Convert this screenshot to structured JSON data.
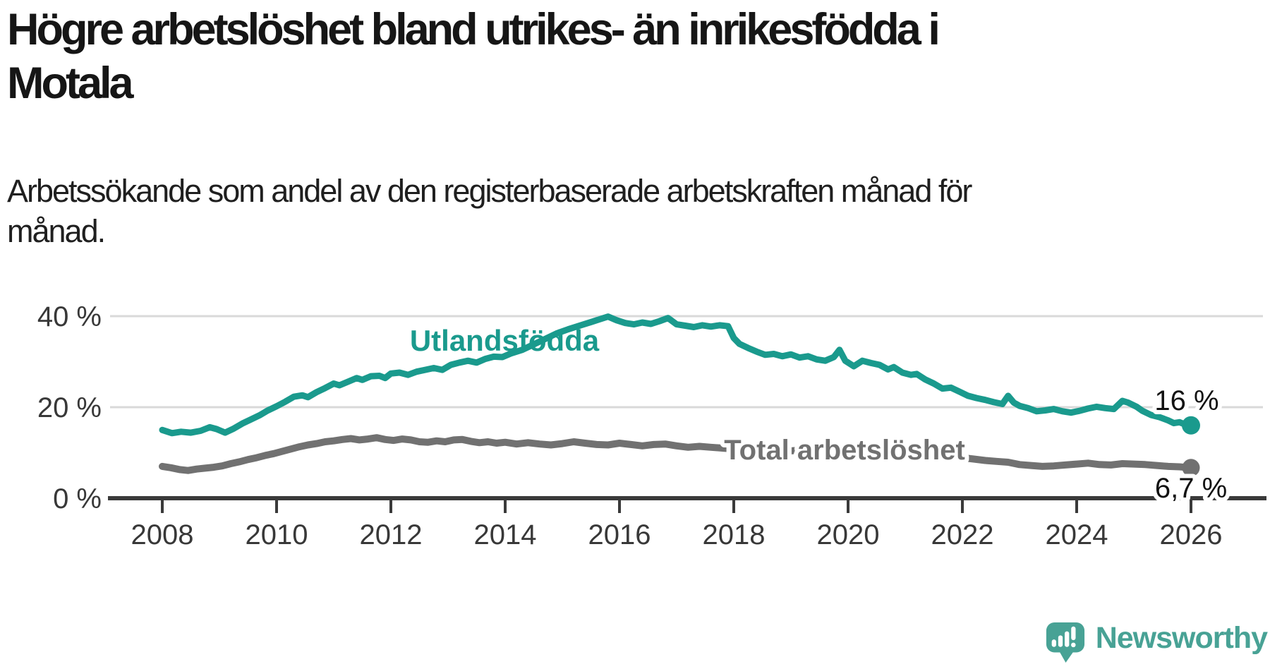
{
  "title_lines": [
    "Högre arbetslöshet bland utrikes- än inrikesfödda i",
    "Motala"
  ],
  "subtitle_lines": [
    "Arbetssökande som andel av den registerbaserade arbetskraften månad för",
    "månad."
  ],
  "branding": {
    "name": "Newsworthy",
    "logo_icon": "newsworthy-speech-bubble-bar-chart-icon"
  },
  "colors": {
    "series_foreign_born": "#1a9a8d",
    "series_total": "#717171",
    "axis": "#3a3a3a",
    "grid": "#d9d9d9",
    "label_text": "#111111",
    "tick_text": "#383838",
    "brand": "#48a295"
  },
  "chart_data": {
    "type": "line",
    "title": "Högre arbetslöshet bland utrikes- än inrikesfödda i Motala",
    "subtitle": "Arbetssökande som andel av den registerbaserade arbetskraften månad för månad.",
    "xlabel": "",
    "ylabel": "%",
    "grid": "horizontal",
    "legend_position": "inline-labels",
    "x_axis": {
      "range_years": [
        2007.1,
        2027.3
      ],
      "ticks": [
        {
          "value": 2008,
          "label": "2008"
        },
        {
          "value": 2010,
          "label": "2010"
        },
        {
          "value": 2012,
          "label": "2012"
        },
        {
          "value": 2014,
          "label": "2014"
        },
        {
          "value": 2016,
          "label": "2016"
        },
        {
          "value": 2018,
          "label": "2018"
        },
        {
          "value": 2020,
          "label": "2020"
        },
        {
          "value": 2022,
          "label": "2022"
        },
        {
          "value": 2024,
          "label": "2024"
        },
        {
          "value": 2026,
          "label": "2026"
        }
      ]
    },
    "y_axis": {
      "unit": "%",
      "range": [
        0,
        45
      ],
      "ticks": [
        {
          "value": 0,
          "label": "0 %"
        },
        {
          "value": 20,
          "label": "20 %"
        },
        {
          "value": 40,
          "label": "40 %"
        }
      ]
    },
    "series": [
      {
        "name": "Utlandsfödda",
        "color": "#1a9a8d",
        "end_value": 16,
        "end_label": "16 %",
        "points": [
          [
            2008.0,
            15.0
          ],
          [
            2008.17,
            14.3
          ],
          [
            2008.33,
            14.6
          ],
          [
            2008.5,
            14.4
          ],
          [
            2008.67,
            14.8
          ],
          [
            2008.83,
            15.6
          ],
          [
            2008.95,
            15.2
          ],
          [
            2009.1,
            14.4
          ],
          [
            2009.25,
            15.3
          ],
          [
            2009.4,
            16.4
          ],
          [
            2009.55,
            17.3
          ],
          [
            2009.7,
            18.2
          ],
          [
            2009.85,
            19.3
          ],
          [
            2010.0,
            20.2
          ],
          [
            2010.15,
            21.2
          ],
          [
            2010.3,
            22.3
          ],
          [
            2010.45,
            22.6
          ],
          [
            2010.55,
            22.2
          ],
          [
            2010.7,
            23.3
          ],
          [
            2010.85,
            24.2
          ],
          [
            2011.0,
            25.2
          ],
          [
            2011.1,
            24.8
          ],
          [
            2011.25,
            25.6
          ],
          [
            2011.4,
            26.4
          ],
          [
            2011.5,
            26.0
          ],
          [
            2011.65,
            26.8
          ],
          [
            2011.8,
            26.9
          ],
          [
            2011.9,
            26.4
          ],
          [
            2012.0,
            27.4
          ],
          [
            2012.15,
            27.6
          ],
          [
            2012.3,
            27.1
          ],
          [
            2012.45,
            27.8
          ],
          [
            2012.6,
            28.2
          ],
          [
            2012.75,
            28.6
          ],
          [
            2012.9,
            28.2
          ],
          [
            2013.05,
            29.3
          ],
          [
            2013.2,
            29.8
          ],
          [
            2013.35,
            30.2
          ],
          [
            2013.5,
            29.8
          ],
          [
            2013.65,
            30.6
          ],
          [
            2013.8,
            31.1
          ],
          [
            2013.95,
            31.0
          ],
          [
            2014.1,
            31.8
          ],
          [
            2014.3,
            32.6
          ],
          [
            2014.5,
            33.8
          ],
          [
            2014.7,
            35.0
          ],
          [
            2014.9,
            36.2
          ],
          [
            2015.1,
            37.1
          ],
          [
            2015.3,
            37.9
          ],
          [
            2015.5,
            38.7
          ],
          [
            2015.65,
            39.3
          ],
          [
            2015.8,
            39.9
          ],
          [
            2015.95,
            39.1
          ],
          [
            2016.1,
            38.5
          ],
          [
            2016.25,
            38.2
          ],
          [
            2016.4,
            38.6
          ],
          [
            2016.55,
            38.3
          ],
          [
            2016.7,
            38.9
          ],
          [
            2016.85,
            39.6
          ],
          [
            2017.0,
            38.2
          ],
          [
            2017.15,
            37.9
          ],
          [
            2017.3,
            37.6
          ],
          [
            2017.45,
            38.0
          ],
          [
            2017.6,
            37.7
          ],
          [
            2017.75,
            38.0
          ],
          [
            2017.9,
            37.8
          ],
          [
            2018.0,
            35.2
          ],
          [
            2018.1,
            33.9
          ],
          [
            2018.25,
            33.0
          ],
          [
            2018.4,
            32.2
          ],
          [
            2018.55,
            31.5
          ],
          [
            2018.7,
            31.7
          ],
          [
            2018.85,
            31.2
          ],
          [
            2019.0,
            31.6
          ],
          [
            2019.15,
            30.9
          ],
          [
            2019.3,
            31.2
          ],
          [
            2019.45,
            30.5
          ],
          [
            2019.6,
            30.2
          ],
          [
            2019.75,
            31.0
          ],
          [
            2019.85,
            32.6
          ],
          [
            2019.95,
            30.2
          ],
          [
            2020.1,
            29.0
          ],
          [
            2020.25,
            30.2
          ],
          [
            2020.4,
            29.7
          ],
          [
            2020.55,
            29.3
          ],
          [
            2020.7,
            28.3
          ],
          [
            2020.8,
            28.8
          ],
          [
            2020.95,
            27.6
          ],
          [
            2021.1,
            27.1
          ],
          [
            2021.2,
            27.3
          ],
          [
            2021.35,
            26.1
          ],
          [
            2021.5,
            25.2
          ],
          [
            2021.65,
            24.1
          ],
          [
            2021.8,
            24.3
          ],
          [
            2021.95,
            23.4
          ],
          [
            2022.1,
            22.5
          ],
          [
            2022.25,
            22.0
          ],
          [
            2022.4,
            21.6
          ],
          [
            2022.55,
            21.1
          ],
          [
            2022.7,
            20.7
          ],
          [
            2022.8,
            22.5
          ],
          [
            2022.9,
            21.0
          ],
          [
            2023.0,
            20.3
          ],
          [
            2023.15,
            19.8
          ],
          [
            2023.3,
            19.1
          ],
          [
            2023.45,
            19.3
          ],
          [
            2023.6,
            19.6
          ],
          [
            2023.75,
            19.1
          ],
          [
            2023.9,
            18.8
          ],
          [
            2024.05,
            19.2
          ],
          [
            2024.2,
            19.7
          ],
          [
            2024.35,
            20.1
          ],
          [
            2024.5,
            19.8
          ],
          [
            2024.65,
            19.6
          ],
          [
            2024.8,
            21.4
          ],
          [
            2024.9,
            21.0
          ],
          [
            2025.05,
            20.1
          ],
          [
            2025.15,
            19.2
          ],
          [
            2025.3,
            18.3
          ],
          [
            2025.45,
            17.8
          ],
          [
            2025.6,
            17.1
          ],
          [
            2025.7,
            16.5
          ],
          [
            2025.8,
            16.7
          ],
          [
            2025.92,
            16.1
          ],
          [
            2026.0,
            16.0
          ]
        ]
      },
      {
        "name": "Total arbetslöshet",
        "color": "#717171",
        "end_value": 6.7,
        "end_label": "6,7 %",
        "points": [
          [
            2008.0,
            7.0
          ],
          [
            2008.15,
            6.7
          ],
          [
            2008.3,
            6.3
          ],
          [
            2008.45,
            6.1
          ],
          [
            2008.6,
            6.4
          ],
          [
            2008.75,
            6.6
          ],
          [
            2008.9,
            6.8
          ],
          [
            2009.05,
            7.1
          ],
          [
            2009.2,
            7.6
          ],
          [
            2009.35,
            8.0
          ],
          [
            2009.5,
            8.5
          ],
          [
            2009.65,
            8.9
          ],
          [
            2009.8,
            9.4
          ],
          [
            2009.95,
            9.8
          ],
          [
            2010.1,
            10.3
          ],
          [
            2010.25,
            10.8
          ],
          [
            2010.4,
            11.3
          ],
          [
            2010.55,
            11.7
          ],
          [
            2010.7,
            12.0
          ],
          [
            2010.85,
            12.4
          ],
          [
            2011.0,
            12.6
          ],
          [
            2011.15,
            12.9
          ],
          [
            2011.3,
            13.1
          ],
          [
            2011.45,
            12.8
          ],
          [
            2011.6,
            13.0
          ],
          [
            2011.75,
            13.3
          ],
          [
            2011.9,
            12.9
          ],
          [
            2012.05,
            12.7
          ],
          [
            2012.2,
            13.0
          ],
          [
            2012.35,
            12.8
          ],
          [
            2012.5,
            12.4
          ],
          [
            2012.65,
            12.3
          ],
          [
            2012.8,
            12.6
          ],
          [
            2012.95,
            12.4
          ],
          [
            2013.1,
            12.8
          ],
          [
            2013.25,
            12.9
          ],
          [
            2013.4,
            12.5
          ],
          [
            2013.55,
            12.2
          ],
          [
            2013.7,
            12.4
          ],
          [
            2013.85,
            12.1
          ],
          [
            2014.0,
            12.3
          ],
          [
            2014.2,
            11.9
          ],
          [
            2014.4,
            12.2
          ],
          [
            2014.6,
            11.9
          ],
          [
            2014.8,
            11.7
          ],
          [
            2015.0,
            12.0
          ],
          [
            2015.2,
            12.4
          ],
          [
            2015.4,
            12.1
          ],
          [
            2015.6,
            11.8
          ],
          [
            2015.8,
            11.7
          ],
          [
            2016.0,
            12.1
          ],
          [
            2016.2,
            11.8
          ],
          [
            2016.4,
            11.5
          ],
          [
            2016.6,
            11.8
          ],
          [
            2016.8,
            11.9
          ],
          [
            2017.0,
            11.5
          ],
          [
            2017.2,
            11.2
          ],
          [
            2017.4,
            11.4
          ],
          [
            2017.6,
            11.2
          ],
          [
            2017.8,
            11.0
          ],
          [
            2018.0,
            10.8
          ],
          [
            2018.2,
            11.0
          ],
          [
            2018.4,
            10.7
          ],
          [
            2018.6,
            10.5
          ],
          [
            2018.8,
            10.6
          ],
          [
            2019.0,
            10.4
          ],
          [
            2019.2,
            10.6
          ],
          [
            2019.4,
            10.3
          ],
          [
            2019.6,
            10.5
          ],
          [
            2019.8,
            10.2
          ],
          [
            2020.0,
            10.4
          ],
          [
            2020.2,
            10.8
          ],
          [
            2020.4,
            11.1
          ],
          [
            2020.6,
            11.0
          ],
          [
            2020.8,
            10.8
          ],
          [
            2021.0,
            10.6
          ],
          [
            2021.2,
            10.3
          ],
          [
            2021.4,
            10.0
          ],
          [
            2021.6,
            9.6
          ],
          [
            2021.8,
            9.3
          ],
          [
            2022.0,
            8.9
          ],
          [
            2022.2,
            8.6
          ],
          [
            2022.4,
            8.3
          ],
          [
            2022.6,
            8.1
          ],
          [
            2022.8,
            7.9
          ],
          [
            2023.0,
            7.4
          ],
          [
            2023.2,
            7.2
          ],
          [
            2023.4,
            7.0
          ],
          [
            2023.6,
            7.1
          ],
          [
            2023.8,
            7.3
          ],
          [
            2024.0,
            7.5
          ],
          [
            2024.2,
            7.7
          ],
          [
            2024.4,
            7.4
          ],
          [
            2024.6,
            7.3
          ],
          [
            2024.8,
            7.6
          ],
          [
            2025.0,
            7.5
          ],
          [
            2025.2,
            7.4
          ],
          [
            2025.4,
            7.2
          ],
          [
            2025.6,
            7.0
          ],
          [
            2025.8,
            6.9
          ],
          [
            2026.0,
            6.7
          ]
        ]
      }
    ]
  }
}
